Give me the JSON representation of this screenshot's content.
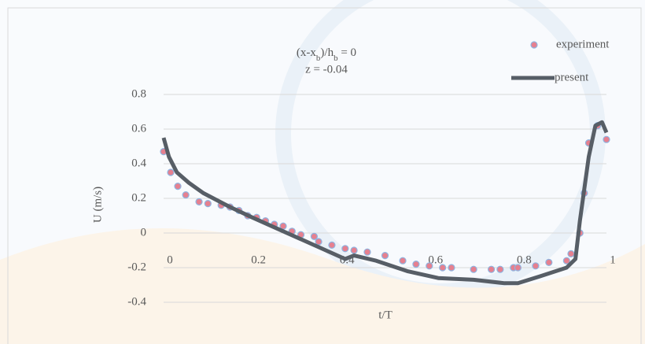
{
  "chart_data": {
    "type": "line",
    "annotation_1": [
      "(x-x",
      "b",
      ")/h",
      "b",
      " = 0"
    ],
    "annotation_2": "z = -0.04",
    "x_label": "t/T",
    "y_label": "U (m/s)",
    "xlim": [
      0,
      1
    ],
    "ylim": [
      -0.4,
      0.8
    ],
    "xticks": [
      0,
      0.2,
      0.4,
      0.6,
      0.8,
      1
    ],
    "yticks": [
      0.8,
      0.6,
      0.4,
      0.2,
      0,
      -0.2,
      -0.4
    ],
    "grid": true,
    "legend": "top-right",
    "series": [
      {
        "name": "experiment",
        "mode": "markers",
        "color": "#e6808f",
        "x": [
          0,
          0.016,
          0.032,
          0.05,
          0.08,
          0.1,
          0.13,
          0.15,
          0.17,
          0.19,
          0.21,
          0.23,
          0.25,
          0.27,
          0.29,
          0.31,
          0.34,
          0.35,
          0.38,
          0.41,
          0.43,
          0.46,
          0.5,
          0.54,
          0.57,
          0.6,
          0.63,
          0.65,
          0.7,
          0.74,
          0.76,
          0.79,
          0.8,
          0.84,
          0.87,
          0.91,
          0.92,
          0.94,
          0.95,
          0.96,
          0.98,
          1.0
        ],
        "values": [
          0.47,
          0.35,
          0.27,
          0.22,
          0.18,
          0.17,
          0.16,
          0.15,
          0.13,
          0.1,
          0.09,
          0.07,
          0.05,
          0.04,
          0.01,
          -0.01,
          -0.02,
          -0.05,
          -0.07,
          -0.09,
          -0.1,
          -0.11,
          -0.13,
          -0.16,
          -0.18,
          -0.19,
          -0.2,
          -0.2,
          -0.21,
          -0.21,
          -0.21,
          -0.2,
          -0.2,
          -0.19,
          -0.17,
          -0.16,
          -0.12,
          0.0,
          0.23,
          0.52,
          0.62,
          0.54
        ]
      },
      {
        "name": "present",
        "mode": "line",
        "color": "#575e66",
        "x": [
          0,
          0.012,
          0.03,
          0.057,
          0.09,
          0.15,
          0.2,
          0.27,
          0.34,
          0.41,
          0.43,
          0.48,
          0.55,
          0.62,
          0.7,
          0.77,
          0.8,
          0.85,
          0.91,
          0.93,
          0.94,
          0.96,
          0.975,
          0.99,
          1.0
        ],
        "values": [
          0.55,
          0.44,
          0.35,
          0.29,
          0.23,
          0.15,
          0.09,
          0.01,
          -0.07,
          -0.15,
          -0.13,
          -0.16,
          -0.22,
          -0.26,
          -0.27,
          -0.29,
          -0.29,
          -0.25,
          -0.2,
          -0.15,
          0.07,
          0.44,
          0.62,
          0.64,
          0.58
        ]
      }
    ]
  }
}
